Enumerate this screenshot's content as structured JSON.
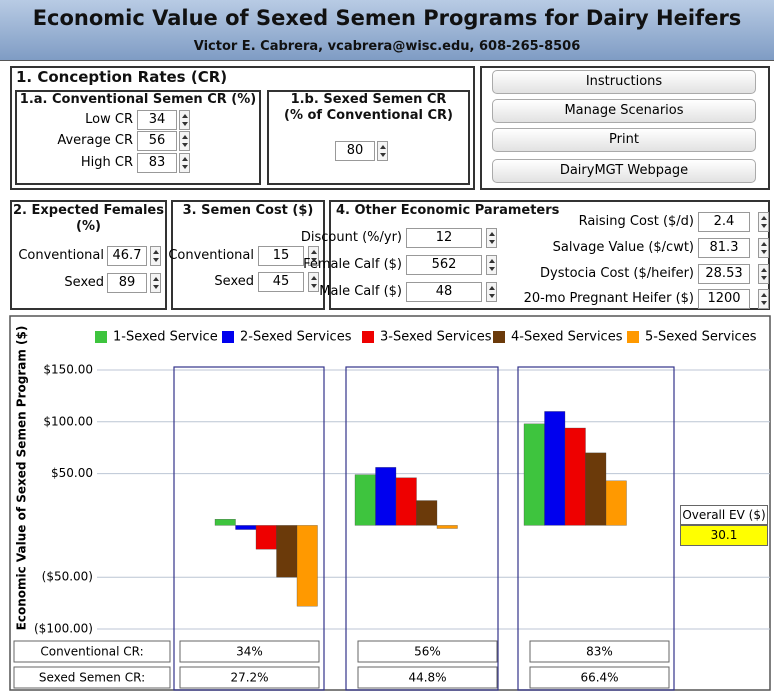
{
  "header": {
    "title": "Economic Value of Sexed Semen Programs for Dairy Heifers",
    "subtitle": "Victor E. Cabrera, vcabrera@wisc.edu, 608-265-8506"
  },
  "conception": {
    "title": "1. Conception Rates (CR)",
    "conventional": {
      "title": "1.a. Conventional Semen CR (%)",
      "fields": [
        {
          "label": "Low CR",
          "value": 34
        },
        {
          "label": "Average CR",
          "value": 56
        },
        {
          "label": "High CR",
          "value": 83
        }
      ]
    },
    "sexed": {
      "title": [
        "1.b. Sexed Semen CR",
        "(% of Conventional CR)"
      ],
      "value": 80
    }
  },
  "buttons": [
    "Instructions",
    "Manage Scenarios",
    "Print",
    "DairyMGT Webpage"
  ],
  "females": {
    "title": [
      "2. Expected Females",
      "(%)"
    ],
    "fields": [
      {
        "label": "Conventional",
        "value": 46.7
      },
      {
        "label": "Sexed",
        "value": 89
      }
    ]
  },
  "semen_cost": {
    "title": "3. Semen Cost ($)",
    "fields": [
      {
        "label": "Conventional",
        "value": 15
      },
      {
        "label": "Sexed",
        "value": 45
      }
    ]
  },
  "other": {
    "title": "4. Other Economic Parameters",
    "left": [
      {
        "label": "Discount (%/yr)",
        "value": 12
      },
      {
        "label": "Female Calf ($)",
        "value": 562
      },
      {
        "label": "Male Calf ($)",
        "value": 48
      }
    ],
    "right": [
      {
        "label": "Raising Cost ($/d)",
        "value": 2.4
      },
      {
        "label": "Salvage Value ($/cwt)",
        "value": 81.3
      },
      {
        "label": "Dystocia Cost ($/heifer)",
        "value": 28.53
      },
      {
        "label": "20-mo Pregnant Heifer ($)",
        "value": 1200
      }
    ]
  },
  "chart_data": {
    "type": "bar",
    "ylabel": "Economic Value of Sexed Semen Program ($)",
    "categories": [
      null,
      null,
      null
    ],
    "series": [
      {
        "name": "1-Sexed Service",
        "color": "#3ec43e",
        "values": [
          6,
          49,
          98
        ]
      },
      {
        "name": "2-Sexed Services",
        "color": "#0000ee",
        "values": [
          -4,
          56,
          110
        ]
      },
      {
        "name": "3-Sexed Services",
        "color": "#ee0000",
        "values": [
          -23,
          46,
          94
        ]
      },
      {
        "name": "4-Sexed Services",
        "color": "#6b3a0a",
        "values": [
          -50,
          24,
          70
        ]
      },
      {
        "name": "5-Sexed Services",
        "color": "#ff9900",
        "values": [
          -78,
          -3,
          43
        ]
      }
    ],
    "ylim": [
      -108,
      158
    ],
    "yticks": [
      {
        "value": 150,
        "label": "$150.00"
      },
      {
        "value": 100,
        "label": "$100.00"
      },
      {
        "value": 50,
        "label": "$50.00"
      },
      {
        "value": -50,
        "label": "($50.00)"
      },
      {
        "value": -100,
        "label": "($100.00)"
      }
    ],
    "grid": true,
    "legend": "top"
  },
  "overall": {
    "label": "Overall EV ($)",
    "value": 30.1
  },
  "cr_table": {
    "rows": [
      {
        "label": "Conventional CR:",
        "values": [
          "34%",
          "56%",
          "83%"
        ]
      },
      {
        "label": "Sexed Semen CR:",
        "values": [
          "27.2%",
          "44.8%",
          "66.4%"
        ]
      }
    ]
  }
}
